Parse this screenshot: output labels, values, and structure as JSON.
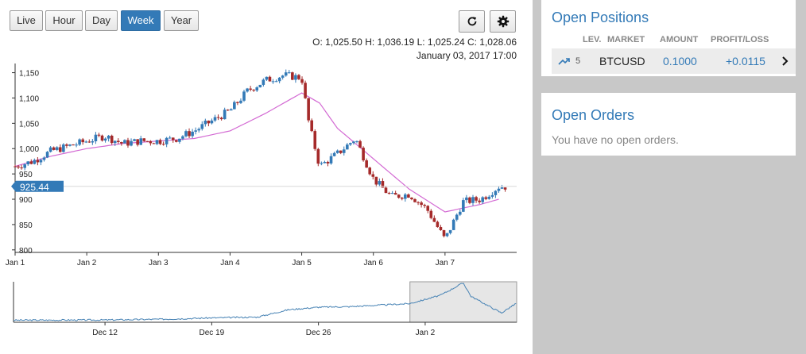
{
  "toolbar": {
    "ranges": [
      "Live",
      "Hour",
      "Day",
      "Week",
      "Year"
    ],
    "active_range": "Week"
  },
  "icons": {
    "refresh": "refresh-icon",
    "settings": "gear-icon",
    "trend": "trending-up-icon",
    "chevron": "chevron-right-icon"
  },
  "ohlc_readout": "O: 1,025.50 H: 1,036.19 L: 1,025.24 C: 1,028.06",
  "timestamp_readout": "January 03, 2017 17:00",
  "current_price_label": "925.44",
  "chart_data": [
    {
      "type": "candlestick",
      "title": "",
      "xlabel": "",
      "ylabel": "",
      "x_ticks": [
        "Jan 1",
        "Jan 2",
        "Jan 3",
        "Jan 4",
        "Jan 5",
        "Jan 6",
        "Jan 7"
      ],
      "y_ticks": [
        800,
        850,
        900,
        950,
        1000,
        1050,
        1100,
        1150
      ],
      "ylim": [
        795,
        1165
      ],
      "grid": false,
      "colors": {
        "up": "#337ab7",
        "down": "#a52a2a",
        "moving_average": "#d36ad3",
        "current_price": "#337ab7"
      },
      "current_price": 925.44,
      "series": [
        {
          "name": "price",
          "x": [
            "Jan 1",
            "Jan 1.25",
            "Jan 1.5",
            "Jan 1.75",
            "Jan 2",
            "Jan 2.25",
            "Jan 2.5",
            "Jan 2.75",
            "Jan 3",
            "Jan 3.25",
            "Jan 3.5",
            "Jan 3.75",
            "Jan 4",
            "Jan 4.25",
            "Jan 4.5",
            "Jan 4.75",
            "Jan 5",
            "Jan 5.1",
            "Jan 5.25",
            "Jan 5.5",
            "Jan 5.75",
            "Jan 6",
            "Jan 6.25",
            "Jan 6.5",
            "Jan 6.75",
            "Jan 7",
            "Jan 7.25",
            "Jan 7.5",
            "Jan 7.75"
          ],
          "values": [
            965,
            975,
            995,
            1005,
            1015,
            1025,
            1010,
            1015,
            1015,
            1020,
            1035,
            1055,
            1075,
            1115,
            1135,
            1145,
            1140,
            1050,
            965,
            990,
            1020,
            940,
            905,
            910,
            880,
            820,
            895,
            900,
            925
          ]
        },
        {
          "name": "moving average",
          "x": [
            "Jan 1",
            "Jan 1.5",
            "Jan 2",
            "Jan 2.5",
            "Jan 3",
            "Jan 3.5",
            "Jan 4",
            "Jan 4.5",
            "Jan 5",
            "Jan 5.25",
            "Jan 5.5",
            "Jan 6",
            "Jan 6.5",
            "Jan 7",
            "Jan 7.5",
            "Jan 7.75"
          ],
          "values": [
            965,
            985,
            1000,
            1010,
            1015,
            1020,
            1035,
            1070,
            1110,
            1090,
            1040,
            980,
            920,
            875,
            890,
            900
          ]
        }
      ]
    },
    {
      "type": "line",
      "title": "",
      "x_ticks": [
        "Dec 12",
        "Dec 19",
        "Dec 26",
        "Jan 2"
      ],
      "grid": false,
      "colors": {
        "line": "#4682b4",
        "brush": "#e6e6e6"
      },
      "brush_range": [
        "Jan 1",
        "Jan 8"
      ],
      "series": [
        {
          "name": "price",
          "x": [
            "Dec 6",
            "Dec 12",
            "Dec 16",
            "Dec 19",
            "Dec 22",
            "Dec 24",
            "Dec 26",
            "Dec 28",
            "Dec 30",
            "Jan 1",
            "Jan 3",
            "Jan 4.5",
            "Jan 5",
            "Jan 6",
            "Jan 7",
            "Jan 8"
          ],
          "values": [
            760,
            762,
            770,
            782,
            790,
            860,
            885,
            890,
            905,
            920,
            1000,
            1120,
            990,
            910,
            830,
            925
          ]
        }
      ]
    }
  ],
  "open_positions": {
    "title": "Open Positions",
    "columns": {
      "lev": "LEV.",
      "market": "MARKET",
      "amount": "AMOUNT",
      "pnl": "PROFIT/LOSS"
    },
    "rows": [
      {
        "lev": "5",
        "market": "BTCUSD",
        "amount": "0.1000",
        "pnl": "+0.0115"
      }
    ]
  },
  "open_orders": {
    "title": "Open Orders",
    "empty_text": "You have no open orders."
  }
}
